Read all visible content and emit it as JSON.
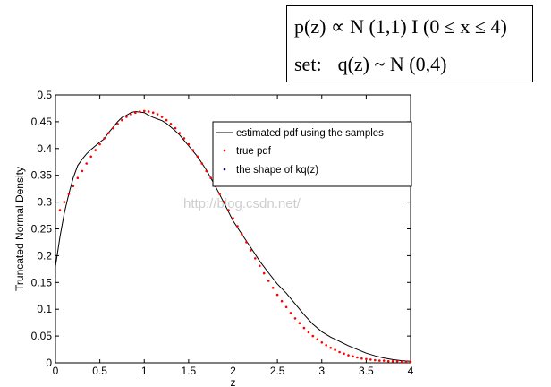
{
  "formula": {
    "line1": "p(z) ∝ N (1,1) I (0 ≤ x ≤ 4)",
    "set_label": "set:",
    "line2": "q(z) ~ N (0,4)"
  },
  "watermark": "http://blog.csdn.net/",
  "chart_data": {
    "type": "line",
    "xlabel": "z",
    "ylabel": "Truncated Normal Density",
    "xlim": [
      0,
      4
    ],
    "ylim": [
      0,
      0.5
    ],
    "xticks": [
      "0",
      "0.5",
      "1",
      "1.5",
      "2",
      "2.5",
      "3",
      "3.5",
      "4"
    ],
    "yticks": [
      "0",
      "0.05",
      "0.1",
      "0.15",
      "0.2",
      "0.25",
      "0.3",
      "0.35",
      "0.4",
      "0.45",
      "0.5"
    ],
    "grid": false,
    "legend_position": "top-right",
    "series": [
      {
        "name": "estimated pdf using the samples",
        "style": "solid-line",
        "color": "#000000",
        "x": [
          0,
          0.05,
          0.1,
          0.15,
          0.2,
          0.25,
          0.3,
          0.35,
          0.4,
          0.45,
          0.5,
          0.55,
          0.6,
          0.65,
          0.7,
          0.75,
          0.8,
          0.85,
          0.9,
          0.95,
          1.0,
          1.05,
          1.1,
          1.15,
          1.2,
          1.25,
          1.3,
          1.35,
          1.4,
          1.45,
          1.5,
          1.6,
          1.7,
          1.8,
          1.9,
          2.0,
          2.1,
          2.2,
          2.3,
          2.4,
          2.5,
          2.6,
          2.7,
          2.8,
          2.9,
          3.0,
          3.1,
          3.2,
          3.3,
          3.4,
          3.5,
          3.6,
          3.7,
          3.8,
          3.9,
          4.0
        ],
        "y": [
          0.18,
          0.235,
          0.28,
          0.315,
          0.345,
          0.368,
          0.38,
          0.39,
          0.398,
          0.405,
          0.412,
          0.418,
          0.43,
          0.44,
          0.45,
          0.458,
          0.462,
          0.467,
          0.469,
          0.468,
          0.467,
          0.462,
          0.458,
          0.455,
          0.452,
          0.447,
          0.44,
          0.433,
          0.425,
          0.415,
          0.405,
          0.385,
          0.36,
          0.33,
          0.298,
          0.265,
          0.24,
          0.215,
          0.19,
          0.168,
          0.147,
          0.13,
          0.11,
          0.09,
          0.072,
          0.058,
          0.048,
          0.04,
          0.032,
          0.025,
          0.018,
          0.013,
          0.009,
          0.006,
          0.004,
          0.003
        ]
      },
      {
        "name": "true pdf",
        "style": "dotted",
        "color": "#ff0000",
        "x": [
          0.05,
          0.1,
          0.15,
          0.2,
          0.25,
          0.3,
          0.35,
          0.4,
          0.45,
          0.5,
          0.55,
          0.6,
          0.65,
          0.7,
          0.75,
          0.8,
          0.85,
          0.9,
          0.95,
          1.0,
          1.05,
          1.1,
          1.15,
          1.2,
          1.25,
          1.3,
          1.35,
          1.4,
          1.45,
          1.5,
          1.55,
          1.6,
          1.65,
          1.7,
          1.75,
          1.8,
          1.85,
          1.9,
          1.95,
          2.0,
          2.05,
          2.1,
          2.15,
          2.2,
          2.25,
          2.3,
          2.35,
          2.4,
          2.45,
          2.5,
          2.55,
          2.6,
          2.65,
          2.7,
          2.75,
          2.8,
          2.85,
          2.9,
          2.95,
          3.0,
          3.05,
          3.1,
          3.15,
          3.2,
          3.25,
          3.3,
          3.35,
          3.4,
          3.45,
          3.5,
          3.55,
          3.6,
          3.65,
          3.7,
          3.75,
          3.8,
          3.85,
          3.9,
          3.95,
          4.0
        ],
        "y": [
          0.285,
          0.3,
          0.315,
          0.33,
          0.345,
          0.358,
          0.372,
          0.385,
          0.397,
          0.408,
          0.419,
          0.429,
          0.438,
          0.446,
          0.453,
          0.459,
          0.464,
          0.467,
          0.469,
          0.47,
          0.469,
          0.467,
          0.464,
          0.459,
          0.453,
          0.446,
          0.438,
          0.429,
          0.419,
          0.408,
          0.397,
          0.385,
          0.372,
          0.358,
          0.345,
          0.33,
          0.315,
          0.3,
          0.285,
          0.27,
          0.255,
          0.24,
          0.225,
          0.21,
          0.195,
          0.181,
          0.167,
          0.153,
          0.14,
          0.127,
          0.115,
          0.104,
          0.093,
          0.083,
          0.074,
          0.065,
          0.057,
          0.05,
          0.044,
          0.038,
          0.033,
          0.028,
          0.024,
          0.02,
          0.017,
          0.014,
          0.012,
          0.01,
          0.008,
          0.007,
          0.006,
          0.005,
          0.004,
          0.004,
          0.003,
          0.003,
          0.003,
          0.002,
          0.002,
          0.002
        ]
      },
      {
        "name": "the shape of kq(z)",
        "style": "dotted",
        "color": "#000080",
        "x": [],
        "y": []
      }
    ]
  }
}
